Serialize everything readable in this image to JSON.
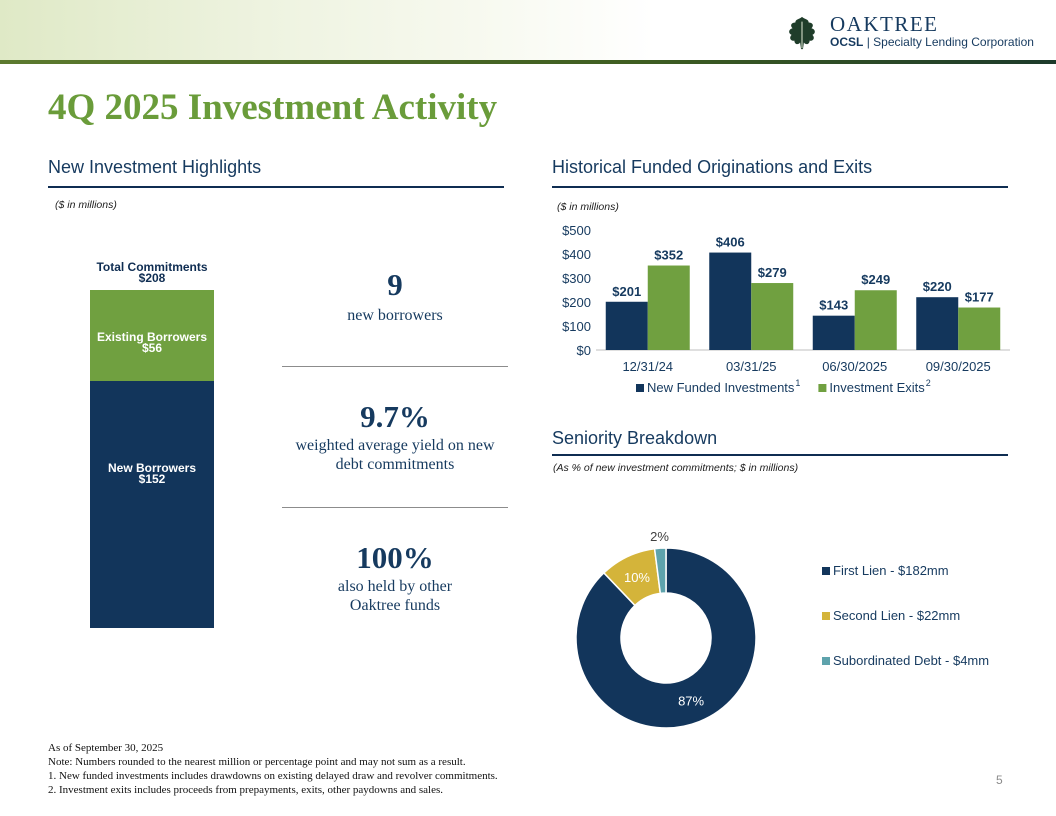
{
  "brand": {
    "name": "OAKTREE",
    "ticker": "OCSL",
    "separator": "|",
    "subtitle": "Specialty Lending Corporation"
  },
  "title": "4Q 2025 Investment Activity",
  "left": {
    "heading": "New Investment Highlights",
    "note": "($ in millions)",
    "stack": {
      "total_label": "Total Commitments",
      "total_value": "$208",
      "total": 208,
      "segments": [
        {
          "label": "Existing Borrowers",
          "value_label": "$56",
          "value": 56,
          "color": "#70a040"
        },
        {
          "label": "New Borrowers",
          "value_label": "$152",
          "value": 152,
          "color": "#12355b"
        }
      ]
    },
    "stats": [
      {
        "big": "9",
        "line1": "new borrowers",
        "line2": ""
      },
      {
        "big": "9.7%",
        "line1": "weighted average yield on new",
        "line2": "debt commitments"
      },
      {
        "big": "100%",
        "line1": "also held by other",
        "line2": "Oaktree funds"
      }
    ]
  },
  "right": {
    "heading": "Historical Funded Originations and Exits",
    "bar_note": "($ in millions)",
    "seniority_heading": "Seniority Breakdown",
    "seniority_note": "(As % of new investment commitments; $ in millions)"
  },
  "chart_data": [
    {
      "type": "bar",
      "categories": [
        "12/31/24",
        "03/31/25",
        "06/30/2025",
        "09/30/2025"
      ],
      "series": [
        {
          "name": "New Funded Investments",
          "superscript": "1",
          "color": "#12355b",
          "values": [
            201,
            406,
            143,
            220
          ],
          "labels": [
            "$201",
            "$406",
            "$143",
            "$220"
          ]
        },
        {
          "name": "Investment Exits",
          "superscript": "2",
          "color": "#70a040",
          "values": [
            352,
            279,
            249,
            177
          ],
          "labels": [
            "$352",
            "$279",
            "$249",
            "$177"
          ]
        }
      ],
      "ylim": [
        0,
        500
      ],
      "yticks": [
        0,
        100,
        200,
        300,
        400,
        500
      ],
      "ytick_labels": [
        "$0",
        "$100",
        "$200",
        "$300",
        "$400",
        "$500"
      ],
      "legend_position": "bottom"
    },
    {
      "type": "pie",
      "style": "donut",
      "slices": [
        {
          "name": "First Lien - $182mm",
          "value": 87,
          "label": "87%",
          "color": "#12355b"
        },
        {
          "name": "Second Lien - $22mm",
          "value": 10,
          "label": "10%",
          "color": "#d4b43a"
        },
        {
          "name": "Subordinated Debt - $4mm",
          "value": 2,
          "label": "2%",
          "color": "#5ea3ac"
        }
      ],
      "legend_position": "right"
    }
  ],
  "footnotes": [
    "As of September 30, 2025",
    "Note: Numbers rounded to the nearest million or percentage point and may not sum as a result.",
    "1.   New funded investments includes drawdowns on existing delayed draw and revolver commitments.",
    "2.   Investment exits includes proceeds from prepayments, exits, other paydowns and sales."
  ],
  "page_number": "5"
}
